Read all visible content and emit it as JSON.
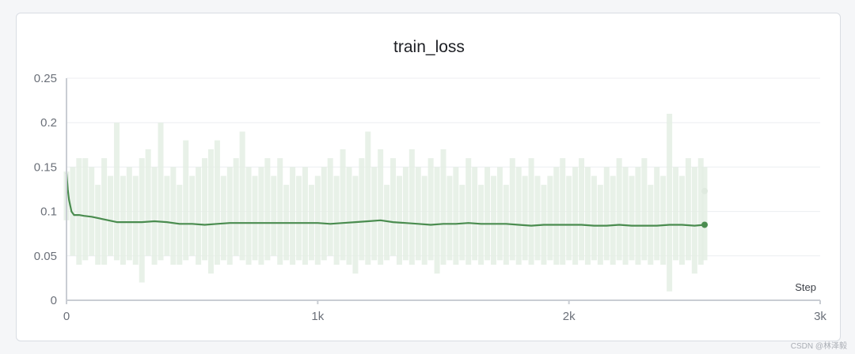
{
  "watermark": "CSDN @林泽毅",
  "chart_data": {
    "type": "line",
    "title": "train_loss",
    "xlabel": "Step",
    "ylabel": "",
    "xlim": [
      0,
      3000
    ],
    "ylim": [
      0,
      0.25
    ],
    "x_ticks": [
      0,
      1000,
      2000,
      3000
    ],
    "x_tick_labels": [
      "0",
      "1k",
      "2k",
      "3k"
    ],
    "y_ticks": [
      0,
      0.05,
      0.1,
      0.15,
      0.2,
      0.25
    ],
    "y_tick_labels": [
      "0",
      "0.05",
      "0.1",
      "0.15",
      "0.2",
      "0.25"
    ],
    "grid": true,
    "colors": {
      "smoothed": "#4a8c4f",
      "raw": "#e4efe4",
      "raw_end_marker": "#dfeadf",
      "axis": "#c9cdd3",
      "grid": "#eceef1"
    },
    "series": [
      {
        "role": "smoothed",
        "x": [
          0,
          5,
          10,
          20,
          30,
          50,
          70,
          100,
          150,
          200,
          250,
          300,
          350,
          400,
          450,
          500,
          550,
          600,
          650,
          700,
          750,
          800,
          850,
          900,
          950,
          1000,
          1050,
          1100,
          1150,
          1200,
          1250,
          1300,
          1350,
          1400,
          1450,
          1500,
          1550,
          1600,
          1650,
          1700,
          1750,
          1800,
          1850,
          1900,
          1950,
          2000,
          2050,
          2100,
          2150,
          2200,
          2250,
          2300,
          2350,
          2400,
          2450,
          2500,
          2540
        ],
        "y": [
          0.143,
          0.125,
          0.113,
          0.1,
          0.096,
          0.096,
          0.095,
          0.094,
          0.091,
          0.088,
          0.088,
          0.088,
          0.089,
          0.088,
          0.086,
          0.086,
          0.085,
          0.086,
          0.087,
          0.087,
          0.087,
          0.087,
          0.087,
          0.087,
          0.087,
          0.087,
          0.086,
          0.087,
          0.088,
          0.089,
          0.09,
          0.088,
          0.087,
          0.086,
          0.085,
          0.086,
          0.086,
          0.087,
          0.086,
          0.086,
          0.086,
          0.085,
          0.084,
          0.085,
          0.085,
          0.085,
          0.085,
          0.084,
          0.084,
          0.085,
          0.084,
          0.084,
          0.084,
          0.085,
          0.085,
          0.084,
          0.085
        ]
      },
      {
        "role": "raw",
        "x": [
          0,
          25,
          50,
          75,
          100,
          125,
          150,
          175,
          200,
          225,
          250,
          275,
          300,
          325,
          350,
          375,
          400,
          425,
          450,
          475,
          500,
          525,
          550,
          575,
          600,
          625,
          650,
          675,
          700,
          725,
          750,
          775,
          800,
          825,
          850,
          875,
          900,
          925,
          950,
          975,
          1000,
          1025,
          1050,
          1075,
          1100,
          1125,
          1150,
          1175,
          1200,
          1225,
          1250,
          1275,
          1300,
          1325,
          1350,
          1375,
          1400,
          1425,
          1450,
          1475,
          1500,
          1525,
          1550,
          1575,
          1600,
          1625,
          1650,
          1675,
          1700,
          1725,
          1750,
          1775,
          1800,
          1825,
          1850,
          1875,
          1900,
          1925,
          1950,
          1975,
          2000,
          2025,
          2050,
          2075,
          2100,
          2125,
          2150,
          2175,
          2200,
          2225,
          2250,
          2275,
          2300,
          2325,
          2350,
          2375,
          2400,
          2425,
          2450,
          2475,
          2500,
          2525,
          2540
        ],
        "y_high": [
          0.145,
          0.15,
          0.16,
          0.16,
          0.15,
          0.13,
          0.16,
          0.14,
          0.2,
          0.14,
          0.15,
          0.14,
          0.16,
          0.17,
          0.15,
          0.2,
          0.14,
          0.15,
          0.13,
          0.18,
          0.14,
          0.15,
          0.16,
          0.17,
          0.18,
          0.14,
          0.15,
          0.16,
          0.19,
          0.15,
          0.14,
          0.15,
          0.16,
          0.14,
          0.16,
          0.13,
          0.15,
          0.14,
          0.15,
          0.13,
          0.14,
          0.15,
          0.16,
          0.14,
          0.17,
          0.15,
          0.14,
          0.16,
          0.19,
          0.15,
          0.17,
          0.13,
          0.16,
          0.14,
          0.15,
          0.17,
          0.15,
          0.14,
          0.16,
          0.15,
          0.17,
          0.14,
          0.15,
          0.13,
          0.16,
          0.15,
          0.13,
          0.15,
          0.14,
          0.15,
          0.13,
          0.16,
          0.15,
          0.14,
          0.16,
          0.14,
          0.13,
          0.14,
          0.15,
          0.16,
          0.14,
          0.15,
          0.16,
          0.15,
          0.14,
          0.13,
          0.15,
          0.14,
          0.16,
          0.15,
          0.14,
          0.15,
          0.16,
          0.13,
          0.15,
          0.14,
          0.21,
          0.15,
          0.14,
          0.16,
          0.15,
          0.16,
          0.15
        ],
        "y_low": [
          0.09,
          0.05,
          0.04,
          0.045,
          0.05,
          0.04,
          0.04,
          0.05,
          0.045,
          0.04,
          0.045,
          0.04,
          0.02,
          0.05,
          0.04,
          0.045,
          0.05,
          0.04,
          0.04,
          0.045,
          0.05,
          0.04,
          0.045,
          0.03,
          0.04,
          0.045,
          0.04,
          0.05,
          0.045,
          0.04,
          0.045,
          0.04,
          0.045,
          0.05,
          0.04,
          0.045,
          0.04,
          0.045,
          0.04,
          0.045,
          0.04,
          0.045,
          0.05,
          0.04,
          0.045,
          0.04,
          0.03,
          0.045,
          0.04,
          0.045,
          0.04,
          0.045,
          0.05,
          0.04,
          0.045,
          0.04,
          0.045,
          0.04,
          0.045,
          0.03,
          0.04,
          0.045,
          0.04,
          0.045,
          0.04,
          0.045,
          0.04,
          0.045,
          0.04,
          0.045,
          0.04,
          0.045,
          0.04,
          0.045,
          0.04,
          0.045,
          0.04,
          0.045,
          0.04,
          0.04,
          0.045,
          0.04,
          0.045,
          0.04,
          0.045,
          0.04,
          0.045,
          0.04,
          0.045,
          0.04,
          0.045,
          0.04,
          0.045,
          0.04,
          0.045,
          0.04,
          0.01,
          0.045,
          0.04,
          0.045,
          0.03,
          0.04,
          0.045
        ]
      }
    ],
    "raw_end_value": 0.123
  }
}
